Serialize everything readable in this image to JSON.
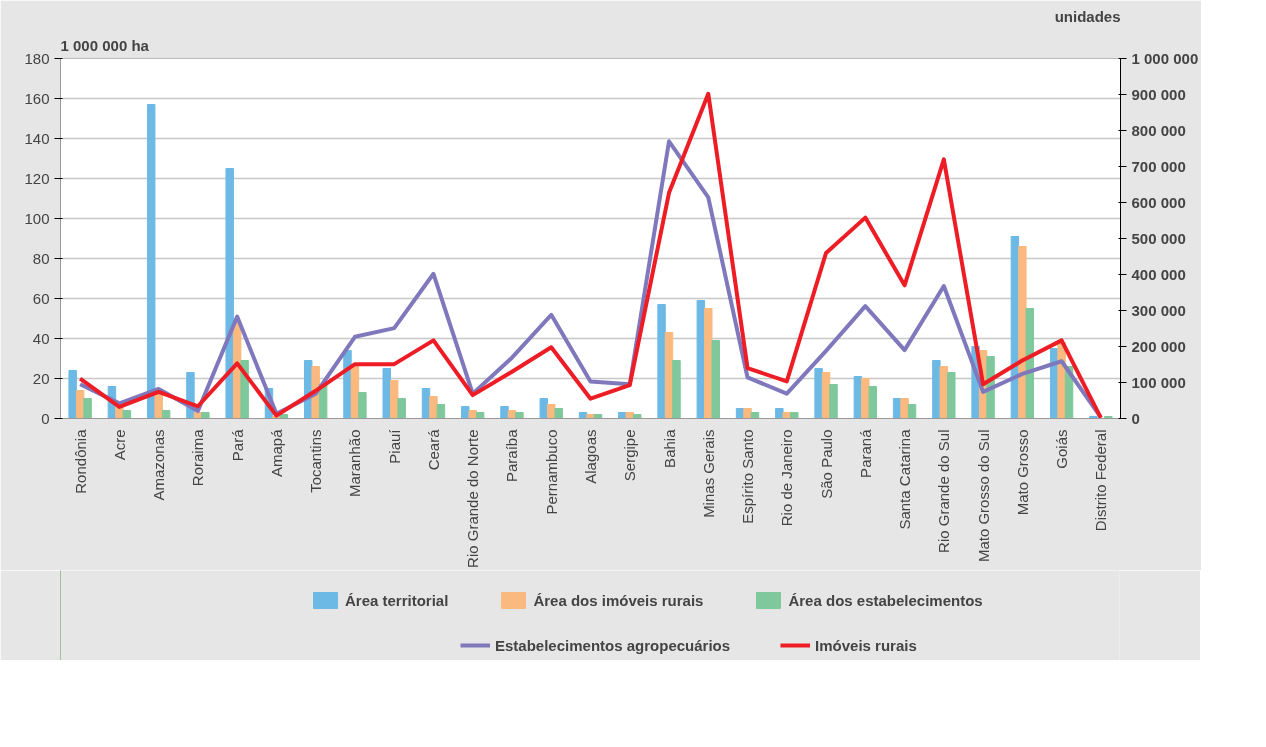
{
  "chart_data": {
    "type": "bar",
    "ylabel": "1 000 000 ha",
    "y2label": "unidades",
    "categories": [
      "Rondônia",
      "Acre",
      "Amazonas",
      "Roraima",
      "Pará",
      "Amapá",
      "Tocantins",
      "Maranhão",
      "Piauí",
      "Ceará",
      "Rio Grande do Norte",
      "Paraíba",
      "Pernambuco",
      "Alagoas",
      "Sergipe",
      "Bahia",
      "Minas Gerais",
      "Espírito Santo",
      "Rio de Janeiro",
      "São Paulo",
      "Paraná",
      "Santa Catarina",
      "Rio Grande do Sul",
      "Mato Grosso do Sul",
      "Mato Grosso",
      "Goiás",
      "Distrito Federal"
    ],
    "series": [
      {
        "name": "Área territorial",
        "color": "#6cb9e6",
        "values": [
          24,
          16,
          157,
          23,
          125,
          15,
          29,
          34,
          25,
          15,
          6,
          6,
          10,
          3,
          3,
          57,
          59,
          5,
          5,
          25,
          21,
          10,
          29,
          36,
          91,
          35,
          1
        ]
      },
      {
        "name": "Área dos imóveis rurais",
        "color": "#f9b97f",
        "values": [
          14,
          6,
          12,
          3,
          48,
          1,
          26,
          26,
          19,
          11,
          4,
          4,
          7,
          2,
          3,
          43,
          55,
          5,
          3,
          23,
          20,
          10,
          26,
          34,
          86,
          38,
          null
        ]
      },
      {
        "name": "Área dos estabelecimentos",
        "color": "#7ec89b",
        "values": [
          10,
          4,
          4,
          3,
          29,
          2,
          17,
          13,
          10,
          7,
          3,
          3,
          5,
          2,
          2,
          29,
          39,
          3,
          3,
          17,
          16,
          7,
          23,
          31,
          55,
          26,
          1
        ]
      },
      {
        "name": "Estabelecimentos agropecuários",
        "type": "line",
        "axis": "y2",
        "color": "#8078bc",
        "values": [
          95000,
          42000,
          82000,
          21000,
          283000,
          13000,
          69000,
          227000,
          251000,
          402000,
          69000,
          169000,
          288000,
          103000,
          95000,
          770000,
          614000,
          114000,
          69000,
          188000,
          312000,
          190000,
          368000,
          74000,
          124000,
          159000,
          3000
        ]
      },
      {
        "name": "Imóveis rurais",
        "type": "line",
        "axis": "y2",
        "color": "#ee1c24",
        "values": [
          111000,
          32000,
          74000,
          34000,
          153000,
          8000,
          77000,
          151000,
          151000,
          217000,
          65000,
          130000,
          198000,
          55000,
          93000,
          627000,
          902000,
          140000,
          103000,
          460000,
          558000,
          370000,
          720000,
          95000,
          161000,
          217000,
          2000
        ]
      }
    ],
    "ylim": [
      0,
      180
    ],
    "yticks": [
      0,
      20,
      40,
      60,
      80,
      100,
      120,
      140,
      160,
      180
    ],
    "y2lim": [
      0,
      1000000
    ],
    "y2ticks": [
      0,
      {
        "value": 100000,
        "label": "100 000"
      },
      {
        "value": 200000,
        "label": "200 000"
      },
      {
        "value": 300000,
        "label": "300 000"
      },
      {
        "value": 400000,
        "label": "400 000"
      },
      {
        "value": 500000,
        "label": "500 000"
      },
      {
        "value": 600000,
        "label": "600 000"
      },
      {
        "value": 700000,
        "label": "700 000"
      },
      {
        "value": 800000,
        "label": "800 000"
      },
      {
        "value": 900000,
        "label": "900 000"
      },
      {
        "value": 1000000,
        "label": "1 000 000"
      }
    ],
    "grid": "y",
    "legend": "bottom",
    "line_style": "solid"
  }
}
